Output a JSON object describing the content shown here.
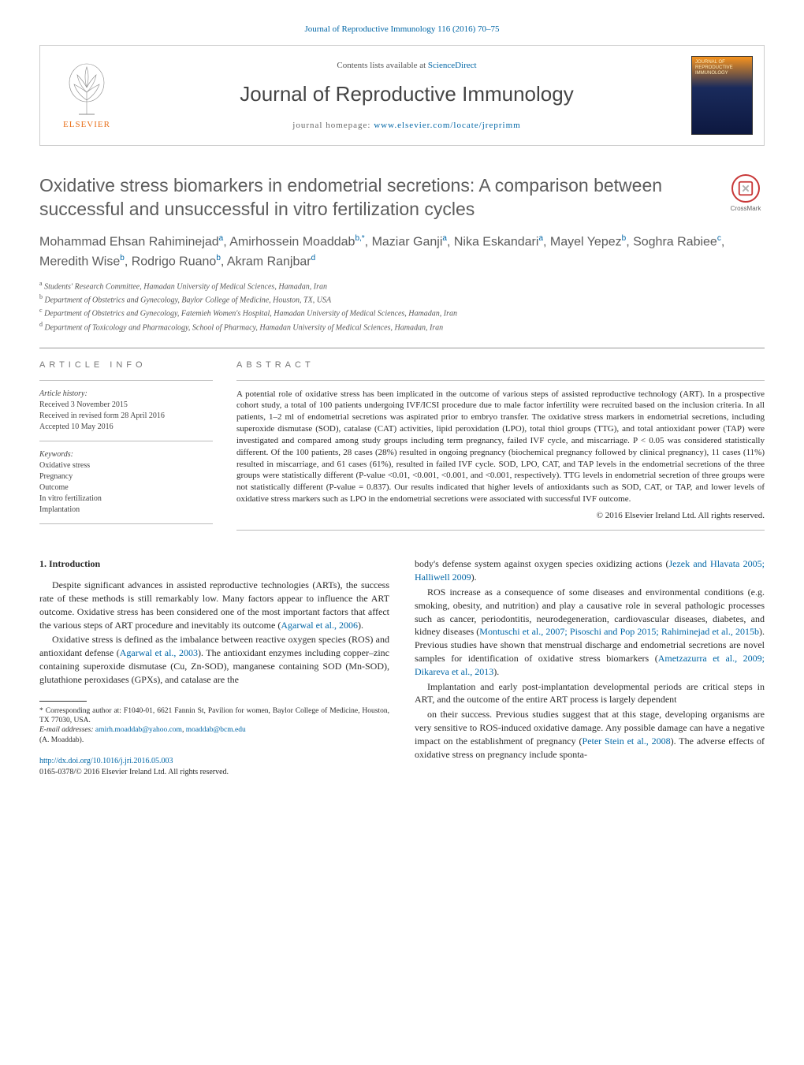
{
  "colors": {
    "link": "#0066a6",
    "text": "#2a2a2a",
    "heading_gray": "#5c5c5c",
    "elsevier_orange": "#e9711c",
    "crossmark_red": "#c83737",
    "rule": "#999999",
    "background": "#ffffff"
  },
  "fonts": {
    "body_family": "Georgia, 'Times New Roman', serif",
    "sans_family": "'Trebuchet MS', Arial, sans-serif",
    "body_size_pt": 12,
    "title_size_pt": 23,
    "journal_size_pt": 26,
    "abstract_size_pt": 11,
    "affil_size_pt": 10
  },
  "header": {
    "top_link": "Journal of Reproductive Immunology 116 (2016) 70–75",
    "contents_prefix": "Contents lists available at ",
    "contents_link": "ScienceDirect",
    "journal_name": "Journal of Reproductive Immunology",
    "homepage_prefix": "journal homepage: ",
    "homepage_url": "www.elsevier.com/locate/jreprimm",
    "publisher": "ELSEVIER"
  },
  "crossmark": {
    "label": "CrossMark"
  },
  "title": "Oxidative stress biomarkers in endometrial secretions: A comparison between successful and unsuccessful in vitro fertilization cycles",
  "authors_html": "Mohammad Ehsan Rahiminejad<sup>a</sup>, Amirhossein Moaddab<sup>b,*</sup>, Maziar Ganji<sup>a</sup>, Nika Eskandari<sup>a</sup>, Mayel Yepez<sup>b</sup>, Soghra Rabiee<sup>c</sup>, Meredith Wise<sup>b</sup>, Rodrigo Ruano<sup>b</sup>, Akram Ranjbar<sup>d</sup>",
  "affiliations": [
    {
      "key": "a",
      "text": "Students' Research Committee, Hamadan University of Medical Sciences, Hamadan, Iran"
    },
    {
      "key": "b",
      "text": "Department of Obstetrics and Gynecology, Baylor College of Medicine, Houston, TX, USA"
    },
    {
      "key": "c",
      "text": "Department of Obstetrics and Gynecology, Fatemieh Women's Hospital, Hamadan University of Medical Sciences, Hamadan, Iran"
    },
    {
      "key": "d",
      "text": "Department of Toxicology and Pharmacology, School of Pharmacy, Hamadan University of Medical Sciences, Hamadan, Iran"
    }
  ],
  "article_info": {
    "heading": "ARTICLE INFO",
    "history_label": "Article history:",
    "received": "Received 3 November 2015",
    "revised": "Received in revised form 28 April 2016",
    "accepted": "Accepted 10 May 2016",
    "keywords_label": "Keywords:",
    "keywords": [
      "Oxidative stress",
      "Pregnancy",
      "Outcome",
      "In vitro fertilization",
      "Implantation"
    ]
  },
  "abstract": {
    "heading": "ABSTRACT",
    "text": "A potential role of oxidative stress has been implicated in the outcome of various steps of assisted reproductive technology (ART). In a prospective cohort study, a total of 100 patients undergoing IVF/ICSI procedure due to male factor infertility were recruited based on the inclusion criteria. In all patients, 1–2 ml of endometrial secretions was aspirated prior to embryo transfer. The oxidative stress markers in endometrial secretions, including superoxide dismutase (SOD), catalase (CAT) activities, lipid peroxidation (LPO), total thiol groups (TTG), and total antioxidant power (TAP) were investigated and compared among study groups including term pregnancy, failed IVF cycle, and miscarriage. P < 0.05 was considered statistically different. Of the 100 patients, 28 cases (28%) resulted in ongoing pregnancy (biochemical pregnancy followed by clinical pregnancy), 11 cases (11%) resulted in miscarriage, and 61 cases (61%), resulted in failed IVF cycle. SOD, LPO, CAT, and TAP levels in the endometrial secretions of the three groups were statistically different (P-value <0.01, <0.001, <0.001, and <0.001, respectively). TTG levels in endometrial secretion of three groups were not statistically different (P-value = 0.837). Our results indicated that higher levels of antioxidants such as SOD, CAT, or TAP, and lower levels of oxidative stress markers such as LPO in the endometrial secretions were associated with successful IVF outcome.",
    "copyright": "© 2016 Elsevier Ireland Ltd. All rights reserved."
  },
  "body": {
    "section_heading": "1. Introduction",
    "left_paragraphs": [
      "Despite significant advances in assisted reproductive technologies (ARTs), the success rate of these methods is still remarkably low. Many factors appear to influence the ART outcome. Oxidative stress has been considered one of the most important factors that affect the various steps of ART procedure and inevitably its outcome (",
      "Oxidative stress is defined as the imbalance between reactive oxygen species (ROS) and antioxidant defense (",
      "). The antioxidant enzymes including copper–zinc containing superoxide dismutase (Cu, Zn-SOD), manganese containing SOD (Mn-SOD), glutathione peroxidases (GPXs), and catalase are the"
    ],
    "left_cites": [
      "Agarwal et al., 2006",
      "Agarwal et al., 2003"
    ],
    "right_paragraphs": [
      "body's defense system against oxygen species oxidizing actions (",
      "ROS increase as a consequence of some diseases and environmental conditions (e.g. smoking, obesity, and nutrition) and play a causative role in several pathologic processes such as cancer, periodontitis, neurodegeneration, cardiovascular diseases, diabetes, and kidney diseases (",
      "). Previous studies have shown that menstrual discharge and endometrial secretions are novel samples for identification of oxidative stress biomarkers (",
      "Implantation and early post-implantation developmental periods are critical steps in ART, and the outcome of the entire ART process is largely dependent",
      "on their success. Previous studies suggest that at this stage, developing organisms are very sensitive to ROS-induced oxidative damage. Any possible damage can have a negative impact on the establishment of pregnancy (",
      "). The adverse effects of oxidative stress on pregnancy include sponta-"
    ],
    "right_cites": [
      "Jezek and Hlavata 2005; Halliwell 2009",
      "Montuschi et al., 2007; Pisoschi and Pop 2015; Rahiminejad et al., 2015b",
      "Ametzazurra et al., 2009; Dikareva et al., 2013",
      "Peter Stein et al., 2008"
    ]
  },
  "footnote": {
    "corr_label": "* Corresponding author at: F1040-01, 6621 Fannin St, Pavilion for women, Baylor College of Medicine, Houston, TX 77030, USA.",
    "email_label": "E-mail addresses:",
    "email1": "amirh.moaddab@yahoo.com",
    "email2": "moaddab@bcm.edu",
    "email_owner": "(A. Moaddab)."
  },
  "doi": {
    "url": "http://dx.doi.org/10.1016/j.jri.2016.05.003",
    "issn_copy": "0165-0378/© 2016 Elsevier Ireland Ltd. All rights reserved."
  }
}
